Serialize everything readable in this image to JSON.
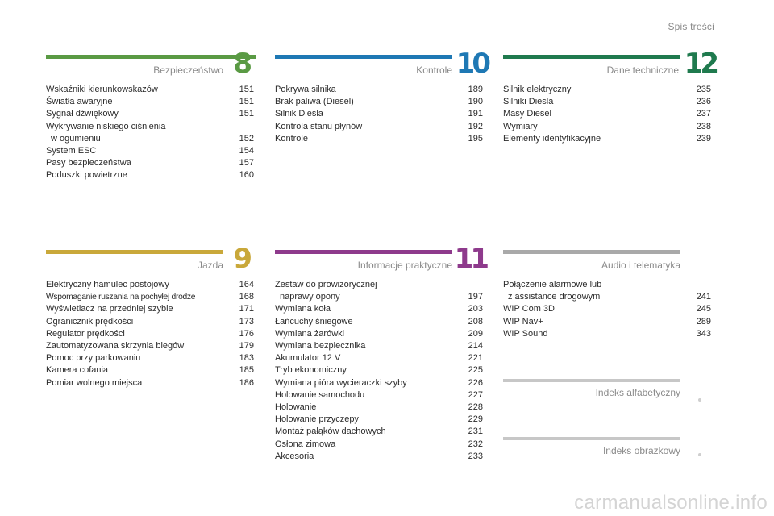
{
  "header": {
    "title": "Spis treści"
  },
  "sections": [
    {
      "number": "8",
      "title": "Bezpieczeństwo",
      "color": "#5a9a44",
      "entries": [
        {
          "label": "Wskaźniki kierunkowskazów",
          "page": "151"
        },
        {
          "label": "Światła awaryjne",
          "page": "151"
        },
        {
          "label": "Sygnał dźwiękowy",
          "page": "151"
        },
        {
          "label": "Wykrywanie niskiego ciśnienia",
          "sub": "w ogumieniu",
          "page": "152"
        },
        {
          "label": "System ESC",
          "page": "154"
        },
        {
          "label": "Pasy bezpieczeństwa",
          "page": "157"
        },
        {
          "label": "Poduszki powietrzne",
          "page": "160"
        }
      ]
    },
    {
      "number": "10",
      "title": "Kontrole",
      "color": "#1e78b4",
      "entries": [
        {
          "label": "Pokrywa silnika",
          "page": "189"
        },
        {
          "label": "Brak paliwa (Diesel)",
          "page": "190"
        },
        {
          "label": "Silnik Diesla",
          "page": "191"
        },
        {
          "label": "Kontrola stanu płynów",
          "page": "192"
        },
        {
          "label": "Kontrole",
          "page": "195"
        }
      ]
    },
    {
      "number": "12",
      "title": "Dane techniczne",
      "color": "#1f7a4e",
      "entries": [
        {
          "label": "Silnik elektryczny",
          "page": "235"
        },
        {
          "label": "Silniki Diesla",
          "page": "236"
        },
        {
          "label": "Masy Diesel",
          "page": "237"
        },
        {
          "label": "Wymiary",
          "page": "238"
        },
        {
          "label": "Elementy identyfikacyjne",
          "page": "239"
        }
      ]
    },
    {
      "number": "9",
      "title": "Jazda",
      "color": "#c9a83a",
      "entries": [
        {
          "label": "Elektryczny hamulec postojowy",
          "page": "164"
        },
        {
          "label": "Wspomaganie ruszania na pochyłej drodze",
          "page": "168",
          "narrow": true
        },
        {
          "label": "Wyświetlacz na przedniej szybie",
          "page": "171"
        },
        {
          "label": "Ogranicznik prędkości",
          "page": "173"
        },
        {
          "label": "Regulator prędkości",
          "page": "176"
        },
        {
          "label": "Zautomatyzowana skrzynia biegów",
          "page": "179"
        },
        {
          "label": "Pomoc przy parkowaniu",
          "page": "183"
        },
        {
          "label": "Kamera cofania",
          "page": "185"
        },
        {
          "label": "Pomiar wolnego miejsca",
          "page": "186"
        }
      ]
    },
    {
      "number": "11",
      "title": "Informacje praktyczne",
      "color": "#8e3a8c",
      "entries": [
        {
          "label": "Zestaw do prowizorycznej",
          "sub": "naprawy opony",
          "page": "197"
        },
        {
          "label": "Wymiana koła",
          "page": "203"
        },
        {
          "label": "Łańcuchy śniegowe",
          "page": "208"
        },
        {
          "label": "Wymiana żarówki",
          "page": "209"
        },
        {
          "label": "Wymiana bezpiecznika",
          "page": "214"
        },
        {
          "label": "Akumulator 12 V",
          "page": "221"
        },
        {
          "label": "Tryb ekonomiczny",
          "page": "225"
        },
        {
          "label": "Wymiana pióra wycieraczki szyby",
          "page": "226"
        },
        {
          "label": "Holowanie samochodu",
          "page": "227"
        },
        {
          "label": "Holowanie",
          "page": "228"
        },
        {
          "label": "Holowanie przyczepy",
          "page": "229"
        },
        {
          "label": "Montaż pałąków dachowych",
          "page": "231"
        },
        {
          "label": "Osłona zimowa",
          "page": "232"
        },
        {
          "label": "Akcesoria",
          "page": "233"
        }
      ]
    },
    {
      "number": "",
      "title": "Audio i telematyka",
      "color": "#a9a9a9",
      "entries": [
        {
          "label": "Połączenie alarmowe lub",
          "sub": "z assistance drogowym",
          "page": "241"
        },
        {
          "label": "WIP Com 3D",
          "page": "245"
        },
        {
          "label": "WIP Nav+",
          "page": "289"
        },
        {
          "label": "WIP Sound",
          "page": "343"
        }
      ]
    }
  ],
  "indexes": [
    {
      "title": "Indeks alfabetyczny"
    },
    {
      "title": "Indeks obrazkowy"
    }
  ],
  "footer": {
    "watermark": "carmanualsonline.info"
  }
}
